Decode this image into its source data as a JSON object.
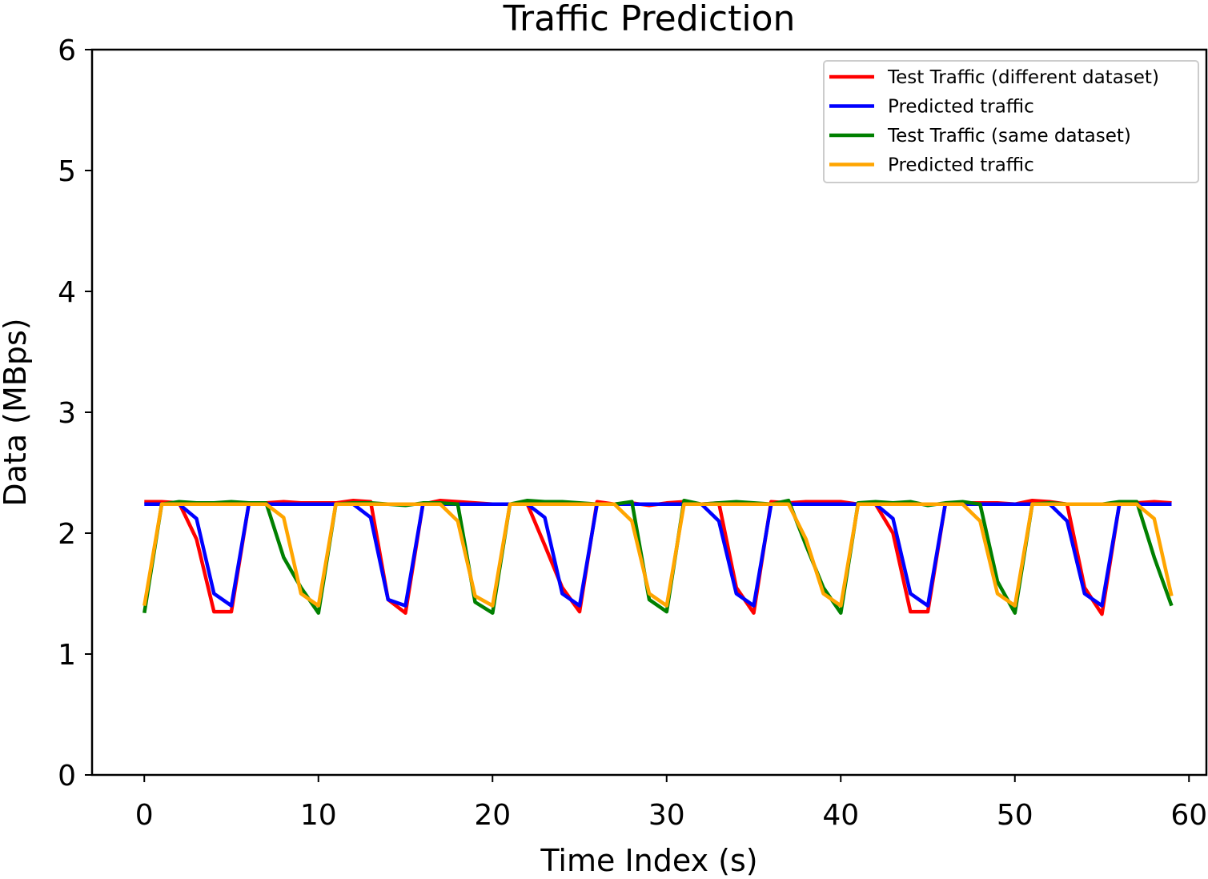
{
  "chart_data": {
    "type": "line",
    "title": "Traffic Prediction",
    "xlabel": "Time Index (s)",
    "ylabel": "Data (MBps)",
    "xlim": [
      -3,
      61
    ],
    "ylim": [
      0,
      6
    ],
    "xticks": [
      0,
      10,
      20,
      30,
      40,
      50,
      60
    ],
    "yticks": [
      0,
      1,
      2,
      3,
      4,
      5,
      6
    ],
    "grid": false,
    "legend_position": "top-right",
    "x": [
      0,
      1,
      2,
      3,
      4,
      5,
      6,
      7,
      8,
      9,
      10,
      11,
      12,
      13,
      14,
      15,
      16,
      17,
      18,
      19,
      20,
      21,
      22,
      23,
      24,
      25,
      26,
      27,
      28,
      29,
      30,
      31,
      32,
      33,
      34,
      35,
      36,
      37,
      38,
      39,
      40,
      41,
      42,
      43,
      44,
      45,
      46,
      47,
      48,
      49,
      50,
      51,
      52,
      53,
      54,
      55,
      56,
      57,
      58,
      59
    ],
    "series": [
      {
        "name": "Test Traffic (different dataset)",
        "color": "#ff0000",
        "values": [
          2.26,
          2.26,
          2.25,
          1.95,
          1.35,
          1.35,
          2.24,
          2.25,
          2.26,
          2.25,
          2.25,
          2.25,
          2.27,
          2.26,
          1.45,
          1.34,
          2.24,
          2.27,
          2.26,
          2.25,
          2.24,
          2.24,
          2.24,
          1.9,
          1.55,
          1.35,
          2.26,
          2.24,
          2.25,
          2.23,
          2.25,
          2.26,
          2.24,
          2.25,
          1.55,
          1.34,
          2.26,
          2.25,
          2.26,
          2.26,
          2.26,
          2.24,
          2.24,
          2.0,
          1.35,
          1.35,
          2.24,
          2.25,
          2.25,
          2.25,
          2.24,
          2.27,
          2.26,
          2.24,
          1.55,
          1.33,
          2.24,
          2.25,
          2.26,
          2.25
        ]
      },
      {
        "name": "Predicted traffic",
        "color": "#0000ff",
        "values": [
          2.24,
          2.24,
          2.24,
          2.12,
          1.5,
          1.4,
          2.24,
          2.24,
          2.24,
          2.24,
          2.24,
          2.24,
          2.24,
          2.13,
          1.45,
          1.4,
          2.24,
          2.24,
          2.24,
          2.24,
          2.24,
          2.24,
          2.24,
          2.13,
          1.5,
          1.4,
          2.24,
          2.24,
          2.24,
          2.24,
          2.24,
          2.24,
          2.24,
          2.1,
          1.5,
          1.4,
          2.24,
          2.24,
          2.24,
          2.24,
          2.24,
          2.24,
          2.24,
          2.12,
          1.5,
          1.4,
          2.24,
          2.24,
          2.24,
          2.24,
          2.24,
          2.24,
          2.24,
          2.1,
          1.5,
          1.4,
          2.24,
          2.24,
          2.24,
          2.24
        ]
      },
      {
        "name": "Test Traffic (same dataset)",
        "color": "#008000",
        "values": [
          1.34,
          2.24,
          2.26,
          2.25,
          2.25,
          2.26,
          2.25,
          2.25,
          1.8,
          1.55,
          1.34,
          2.24,
          2.25,
          2.25,
          2.24,
          2.23,
          2.25,
          2.25,
          2.24,
          1.43,
          1.34,
          2.24,
          2.27,
          2.26,
          2.26,
          2.25,
          2.24,
          2.24,
          2.26,
          1.45,
          1.35,
          2.27,
          2.24,
          2.25,
          2.26,
          2.25,
          2.24,
          2.27,
          1.9,
          1.55,
          1.34,
          2.25,
          2.26,
          2.25,
          2.26,
          2.23,
          2.25,
          2.26,
          2.24,
          1.6,
          1.34,
          2.24,
          2.25,
          2.24,
          2.24,
          2.24,
          2.26,
          2.26,
          1.8,
          1.4
        ]
      },
      {
        "name": "Predicted traffic",
        "color": "#ffa500",
        "values": [
          1.4,
          2.24,
          2.24,
          2.24,
          2.24,
          2.24,
          2.24,
          2.24,
          2.13,
          1.5,
          1.4,
          2.24,
          2.24,
          2.24,
          2.24,
          2.24,
          2.24,
          2.24,
          2.1,
          1.48,
          1.4,
          2.24,
          2.24,
          2.24,
          2.24,
          2.24,
          2.24,
          2.24,
          2.1,
          1.5,
          1.4,
          2.24,
          2.24,
          2.24,
          2.24,
          2.24,
          2.24,
          2.24,
          1.95,
          1.5,
          1.4,
          2.24,
          2.24,
          2.24,
          2.24,
          2.24,
          2.24,
          2.24,
          2.1,
          1.5,
          1.4,
          2.24,
          2.24,
          2.24,
          2.24,
          2.24,
          2.24,
          2.24,
          2.12,
          1.48
        ]
      }
    ]
  }
}
